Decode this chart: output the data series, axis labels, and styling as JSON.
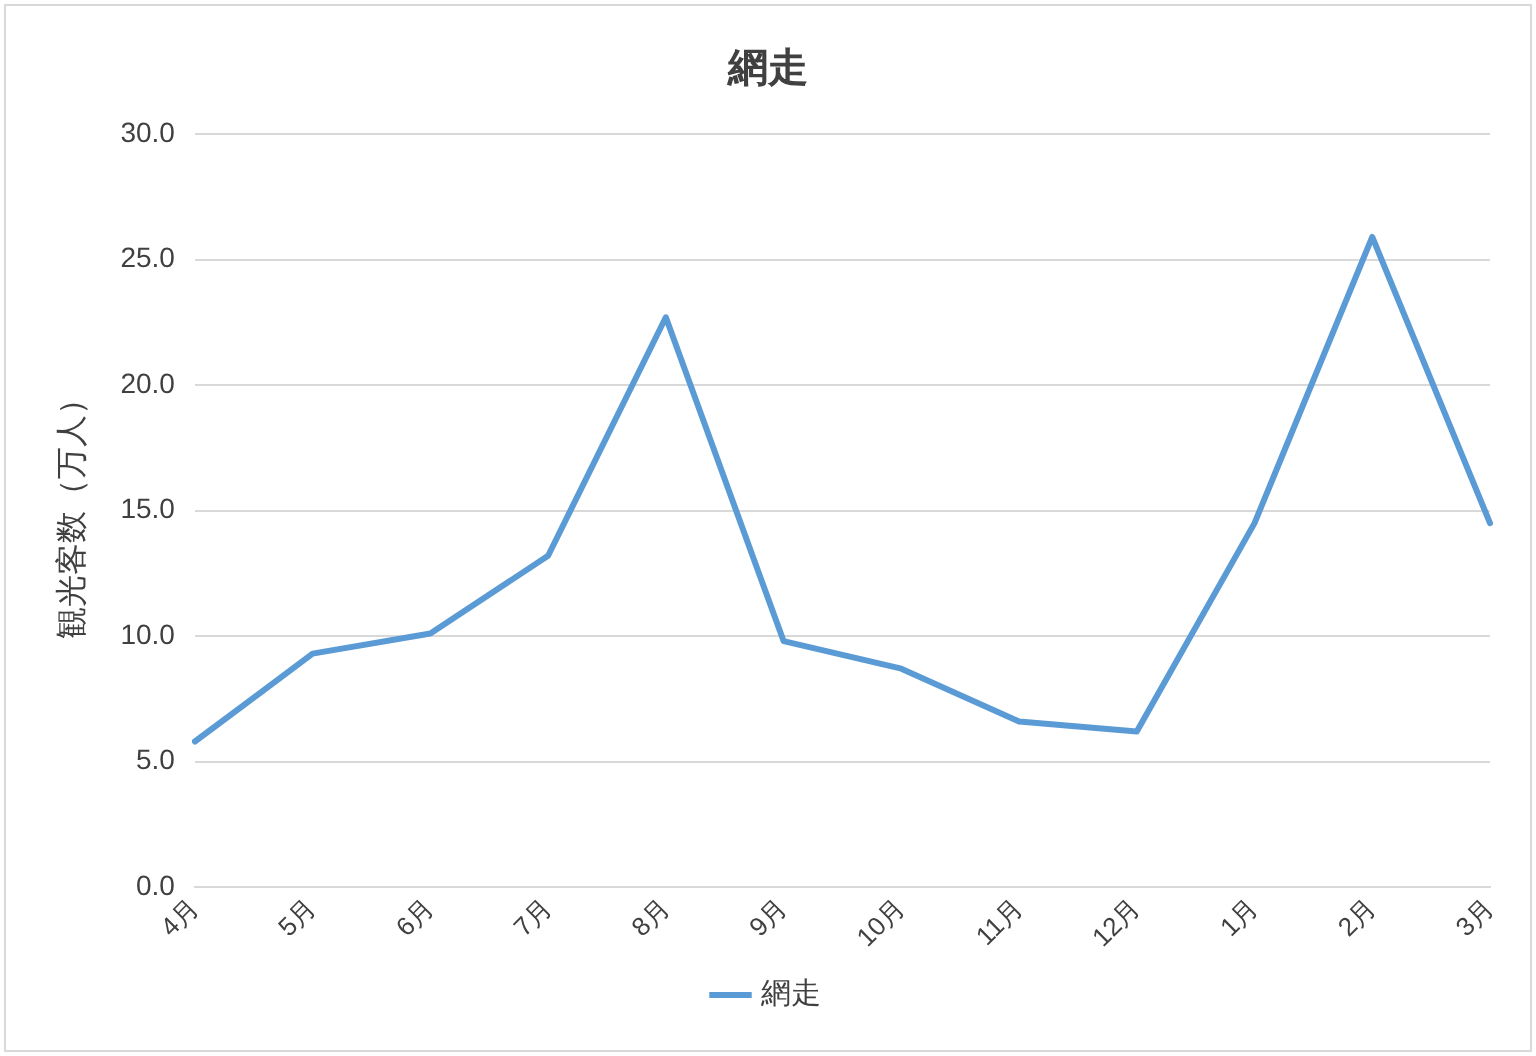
{
  "chart_data": {
    "type": "line",
    "title": "網走",
    "ylabel": "観光客数（万人）",
    "categories": [
      "4月",
      "5月",
      "6月",
      "7月",
      "8月",
      "9月",
      "10月",
      "11月",
      "12月",
      "1月",
      "2月",
      "3月"
    ],
    "series": [
      {
        "name": "網走",
        "color": "#5b9bd5",
        "values": [
          5.8,
          9.3,
          10.1,
          13.2,
          22.7,
          9.8,
          8.7,
          6.6,
          6.2,
          14.5,
          25.9,
          14.5
        ]
      }
    ],
    "ylim": [
      0,
      30
    ],
    "yticks": [
      {
        "value": 0,
        "label": "0.0"
      },
      {
        "value": 5,
        "label": "5.0"
      },
      {
        "value": 10,
        "label": "10.0"
      },
      {
        "value": 15,
        "label": "15.0"
      },
      {
        "value": 20,
        "label": "20.0"
      },
      {
        "value": 25,
        "label": "25.0"
      },
      {
        "value": 30,
        "label": "30.0"
      }
    ],
    "grid": "y",
    "legend": "bottom",
    "marker": "none",
    "line_style": "solid"
  }
}
